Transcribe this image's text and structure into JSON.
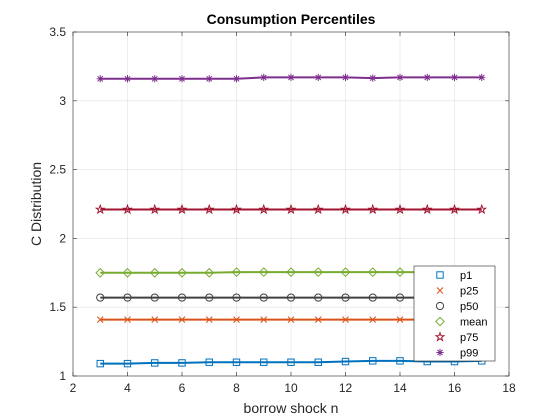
{
  "chart_data": {
    "type": "line",
    "title": "Consumption Percentiles",
    "xlabel": "borrow shock n",
    "ylabel": "C Distribution",
    "xlim": [
      2,
      18
    ],
    "ylim": [
      1,
      3.5
    ],
    "xticks": [
      2,
      4,
      6,
      8,
      10,
      12,
      14,
      16,
      18
    ],
    "yticks": [
      1,
      1.5,
      2,
      2.5,
      3,
      3.5
    ],
    "xtick_labels": [
      "2",
      "4",
      "6",
      "8",
      "10",
      "12",
      "14",
      "16",
      "18"
    ],
    "ytick_labels": [
      "1",
      "1.5",
      "2",
      "2.5",
      "3",
      "3.5"
    ],
    "grid": true,
    "legend_position": "bottom-right",
    "x": [
      3,
      4,
      5,
      6,
      7,
      8,
      9,
      10,
      11,
      12,
      13,
      14,
      15,
      16,
      17
    ],
    "series": [
      {
        "name": "p1",
        "marker": "square",
        "color": "#0072BD",
        "values": [
          1.09,
          1.09,
          1.095,
          1.095,
          1.1,
          1.1,
          1.1,
          1.1,
          1.1,
          1.105,
          1.11,
          1.11,
          1.105,
          1.105,
          1.11
        ]
      },
      {
        "name": "p25",
        "marker": "x",
        "color": "#D95319",
        "values": [
          1.41,
          1.41,
          1.41,
          1.41,
          1.41,
          1.41,
          1.41,
          1.41,
          1.41,
          1.41,
          1.41,
          1.41,
          1.41,
          1.41,
          1.41
        ]
      },
      {
        "name": "p50",
        "marker": "circle",
        "color": "#404040",
        "values": [
          1.57,
          1.57,
          1.57,
          1.57,
          1.57,
          1.57,
          1.57,
          1.57,
          1.57,
          1.57,
          1.57,
          1.57,
          1.57,
          1.57,
          1.57
        ]
      },
      {
        "name": "mean",
        "marker": "diamond",
        "color": "#77AC30",
        "values": [
          1.75,
          1.75,
          1.75,
          1.75,
          1.75,
          1.755,
          1.755,
          1.755,
          1.755,
          1.755,
          1.755,
          1.755,
          1.755,
          1.755,
          1.755
        ]
      },
      {
        "name": "p75",
        "marker": "pentagram",
        "color": "#A2142F",
        "values": [
          2.21,
          2.21,
          2.21,
          2.21,
          2.21,
          2.21,
          2.21,
          2.21,
          2.21,
          2.21,
          2.21,
          2.21,
          2.21,
          2.21,
          2.21
        ]
      },
      {
        "name": "p99",
        "marker": "asterisk",
        "color": "#7E2F8E",
        "values": [
          3.16,
          3.16,
          3.16,
          3.16,
          3.16,
          3.16,
          3.17,
          3.17,
          3.17,
          3.17,
          3.165,
          3.17,
          3.17,
          3.17,
          3.17
        ]
      }
    ]
  }
}
